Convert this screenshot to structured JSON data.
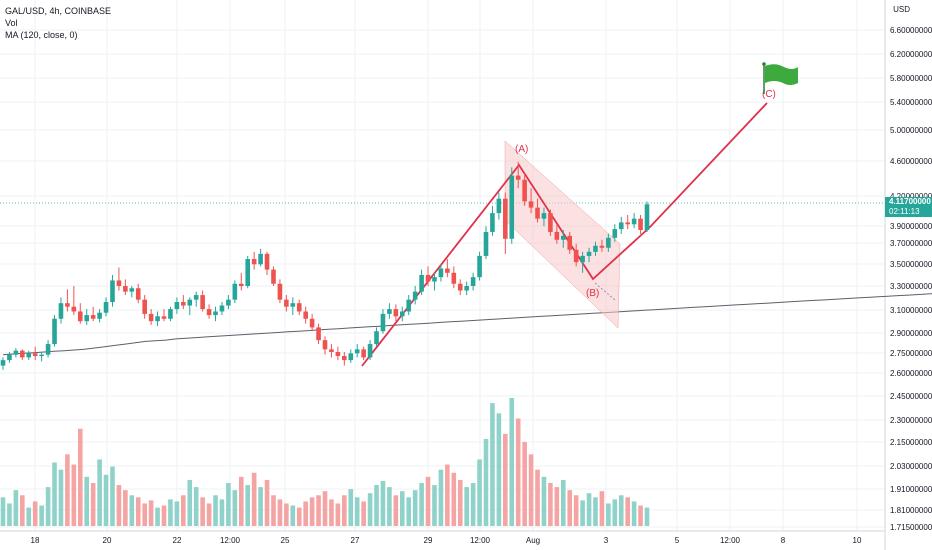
{
  "legend": {
    "symbol": "GAL/USD, 4h, COINBASE",
    "vol": "Vol",
    "ma": "MA (120, close, 0)"
  },
  "currency": "USD",
  "last_price": "4.11700000",
  "countdown": "02:11:13",
  "colors": {
    "up": "#26a69a",
    "down": "#ef5350",
    "up_vol": "#8fd2c9",
    "down_vol": "#f4a5a3",
    "ma": "#5d606b",
    "drawing": "#e0304a",
    "channel_fill": "#f8c8c8",
    "flag": "#3caa3c"
  },
  "chart_data": {
    "type": "candlestick",
    "symbol": "GAL/USD",
    "timeframe": "4h",
    "exchange": "COINBASE",
    "x_tick_labels": [
      "18",
      "20",
      "22",
      "12:00",
      "25",
      "27",
      "29",
      "12:00",
      "Aug",
      "3",
      "5",
      "12:00",
      "8",
      "10"
    ],
    "y_tick_labels": [
      "6.60000000",
      "6.20000000",
      "5.80000000",
      "5.40000000",
      "5.00000000",
      "4.60000000",
      "4.20000000",
      "3.90000000",
      "3.70000000",
      "3.50000000",
      "3.30000000",
      "3.10000000",
      "2.90000000",
      "2.75000000",
      "2.60000000",
      "2.45000000",
      "2.30000000",
      "2.15000000",
      "2.03000000",
      "1.91000000",
      "1.81000000",
      "1.71500000"
    ],
    "y_scale": "log",
    "ylim": [
      1.7,
      6.8
    ],
    "candles": [
      [
        2.66,
        2.72,
        2.63,
        2.7
      ],
      [
        2.7,
        2.76,
        2.68,
        2.74
      ],
      [
        2.74,
        2.79,
        2.72,
        2.77
      ],
      [
        2.77,
        2.78,
        2.7,
        2.72
      ],
      [
        2.72,
        2.77,
        2.7,
        2.75
      ],
      [
        2.75,
        2.8,
        2.7,
        2.73
      ],
      [
        2.73,
        2.76,
        2.69,
        2.74
      ],
      [
        2.74,
        2.85,
        2.72,
        2.82
      ],
      [
        2.82,
        3.05,
        2.8,
        3.02
      ],
      [
        3.02,
        3.2,
        2.98,
        3.15
      ],
      [
        3.15,
        3.27,
        3.08,
        3.12
      ],
      [
        3.12,
        3.3,
        3.05,
        3.08
      ],
      [
        3.08,
        3.15,
        2.98,
        3.0
      ],
      [
        3.0,
        3.1,
        2.97,
        3.05
      ],
      [
        3.05,
        3.12,
        3.0,
        3.02
      ],
      [
        3.02,
        3.1,
        2.99,
        3.07
      ],
      [
        3.07,
        3.2,
        3.04,
        3.16
      ],
      [
        3.16,
        3.4,
        3.12,
        3.35
      ],
      [
        3.35,
        3.47,
        3.26,
        3.3
      ],
      [
        3.3,
        3.36,
        3.22,
        3.25
      ],
      [
        3.25,
        3.3,
        3.2,
        3.28
      ],
      [
        3.28,
        3.32,
        3.15,
        3.18
      ],
      [
        3.18,
        3.22,
        3.02,
        3.06
      ],
      [
        3.06,
        3.1,
        2.97,
        3.0
      ],
      [
        3.0,
        3.08,
        2.96,
        3.04
      ],
      [
        3.04,
        3.1,
        3.0,
        3.02
      ],
      [
        3.02,
        3.12,
        3.0,
        3.1
      ],
      [
        3.1,
        3.2,
        3.06,
        3.16
      ],
      [
        3.16,
        3.22,
        3.1,
        3.13
      ],
      [
        3.13,
        3.2,
        3.05,
        3.18
      ],
      [
        3.18,
        3.25,
        3.12,
        3.22
      ],
      [
        3.22,
        3.26,
        3.08,
        3.1
      ],
      [
        3.1,
        3.14,
        3.02,
        3.05
      ],
      [
        3.05,
        3.12,
        3.0,
        3.08
      ],
      [
        3.08,
        3.16,
        3.05,
        3.13
      ],
      [
        3.13,
        3.22,
        3.1,
        3.18
      ],
      [
        3.18,
        3.35,
        3.15,
        3.32
      ],
      [
        3.32,
        3.42,
        3.26,
        3.3
      ],
      [
        3.3,
        3.58,
        3.28,
        3.55
      ],
      [
        3.55,
        3.62,
        3.45,
        3.5
      ],
      [
        3.5,
        3.65,
        3.48,
        3.6
      ],
      [
        3.6,
        3.62,
        3.4,
        3.45
      ],
      [
        3.45,
        3.48,
        3.3,
        3.32
      ],
      [
        3.32,
        3.36,
        3.15,
        3.18
      ],
      [
        3.18,
        3.22,
        3.08,
        3.12
      ],
      [
        3.12,
        3.2,
        3.05,
        3.15
      ],
      [
        3.15,
        3.18,
        3.05,
        3.08
      ],
      [
        3.08,
        3.12,
        2.98,
        3.02
      ],
      [
        3.02,
        3.06,
        2.92,
        2.95
      ],
      [
        2.95,
        2.98,
        2.82,
        2.85
      ],
      [
        2.85,
        2.88,
        2.74,
        2.78
      ],
      [
        2.78,
        2.82,
        2.72,
        2.76
      ],
      [
        2.76,
        2.8,
        2.7,
        2.73
      ],
      [
        2.73,
        2.76,
        2.66,
        2.7
      ],
      [
        2.7,
        2.78,
        2.68,
        2.75
      ],
      [
        2.75,
        2.82,
        2.72,
        2.78
      ],
      [
        2.78,
        2.8,
        2.7,
        2.72
      ],
      [
        2.72,
        2.85,
        2.7,
        2.82
      ],
      [
        2.82,
        2.95,
        2.8,
        2.92
      ],
      [
        2.92,
        3.1,
        2.9,
        3.06
      ],
      [
        3.06,
        3.15,
        3.02,
        3.1
      ],
      [
        3.1,
        3.14,
        3.0,
        3.04
      ],
      [
        3.04,
        3.12,
        3.0,
        3.08
      ],
      [
        3.08,
        3.22,
        3.05,
        3.18
      ],
      [
        3.18,
        3.3,
        3.14,
        3.25
      ],
      [
        3.25,
        3.45,
        3.22,
        3.4
      ],
      [
        3.4,
        3.48,
        3.3,
        3.34
      ],
      [
        3.34,
        3.42,
        3.26,
        3.38
      ],
      [
        3.38,
        3.5,
        3.34,
        3.46
      ],
      [
        3.46,
        3.55,
        3.38,
        3.42
      ],
      [
        3.42,
        3.48,
        3.28,
        3.32
      ],
      [
        3.32,
        3.36,
        3.22,
        3.26
      ],
      [
        3.26,
        3.34,
        3.22,
        3.3
      ],
      [
        3.3,
        3.42,
        3.26,
        3.38
      ],
      [
        3.38,
        3.62,
        3.35,
        3.58
      ],
      [
        3.58,
        3.88,
        3.55,
        3.82
      ],
      [
        3.82,
        4.1,
        3.78,
        4.02
      ],
      [
        4.02,
        4.25,
        3.95,
        4.18
      ],
      [
        4.18,
        4.25,
        3.6,
        3.75
      ],
      [
        3.75,
        4.55,
        3.7,
        4.45
      ],
      [
        4.45,
        4.62,
        4.3,
        4.4
      ],
      [
        4.4,
        4.48,
        4.1,
        4.15
      ],
      [
        4.15,
        4.3,
        4.02,
        4.08
      ],
      [
        4.08,
        4.18,
        3.92,
        3.96
      ],
      [
        3.96,
        4.08,
        3.88,
        4.02
      ],
      [
        4.02,
        4.06,
        3.78,
        3.82
      ],
      [
        3.82,
        3.9,
        3.7,
        3.74
      ],
      [
        3.74,
        3.84,
        3.66,
        3.78
      ],
      [
        3.78,
        3.82,
        3.6,
        3.64
      ],
      [
        3.64,
        3.7,
        3.48,
        3.52
      ],
      [
        3.52,
        3.62,
        3.42,
        3.58
      ],
      [
        3.58,
        3.66,
        3.52,
        3.62
      ],
      [
        3.62,
        3.72,
        3.58,
        3.68
      ],
      [
        3.68,
        3.74,
        3.62,
        3.66
      ],
      [
        3.66,
        3.8,
        3.62,
        3.76
      ],
      [
        3.76,
        3.9,
        3.72,
        3.85
      ],
      [
        3.85,
        3.98,
        3.8,
        3.92
      ],
      [
        3.92,
        4.0,
        3.85,
        3.9
      ],
      [
        3.9,
        4.02,
        3.86,
        3.96
      ],
      [
        3.96,
        4.0,
        3.8,
        3.84
      ],
      [
        3.84,
        4.15,
        3.82,
        4.117
      ]
    ],
    "volume_series": {
      "name": "Vol",
      "values": [
        28,
        22,
        35,
        30,
        18,
        24,
        20,
        38,
        62,
        55,
        70,
        60,
        95,
        48,
        42,
        65,
        50,
        58,
        40,
        35,
        30,
        28,
        22,
        25,
        18,
        20,
        26,
        24,
        30,
        45,
        38,
        28,
        22,
        30,
        26,
        42,
        35,
        48,
        40,
        52,
        38,
        45,
        30,
        26,
        22,
        20,
        18,
        24,
        28,
        30,
        34,
        26,
        22,
        30,
        36,
        28,
        24,
        32,
        40,
        44,
        38,
        30,
        34,
        28,
        35,
        42,
        48,
        40,
        55,
        60,
        52,
        45,
        38,
        42,
        65,
        85,
        120,
        110,
        90,
        125,
        105,
        82,
        70,
        55,
        48,
        42,
        38,
        45,
        35,
        30,
        25,
        32,
        28,
        34,
        22,
        26,
        30,
        28,
        24,
        20,
        18
      ]
    },
    "ma_series": {
      "name": "MA (120, close, 0)",
      "values": [
        2.74,
        2.745,
        2.75,
        2.755,
        2.76,
        2.765,
        2.77,
        2.775,
        2.78,
        2.79,
        2.8,
        2.81,
        2.82,
        2.83,
        2.84,
        2.845,
        2.85,
        2.86,
        2.865,
        2.87,
        2.875,
        2.88,
        2.885,
        2.89,
        2.895,
        2.9,
        2.905,
        2.91,
        2.915,
        2.92,
        2.925,
        2.93,
        2.935,
        2.94,
        2.945,
        2.95,
        2.955,
        2.96,
        2.965,
        2.97,
        2.975,
        2.98,
        2.985,
        2.99,
        2.995,
        3.0,
        3.005,
        3.01,
        3.015,
        3.02,
        3.025,
        3.03,
        3.035,
        3.04,
        3.045,
        3.05,
        3.055,
        3.06,
        3.065,
        3.07,
        3.075,
        3.08,
        3.085,
        3.09,
        3.095,
        3.1,
        3.105,
        3.11,
        3.115,
        3.12,
        3.125,
        3.13,
        3.135,
        3.14,
        3.145,
        3.15,
        3.155,
        3.16,
        3.165,
        3.17,
        3.175,
        3.18,
        3.185,
        3.19,
        3.195,
        3.2,
        3.205,
        3.21,
        3.215,
        3.22,
        3.225,
        3.23,
        3.235,
        3.24,
        3.245,
        3.25,
        3.255,
        3.26,
        3.265,
        3.27,
        3.275
      ]
    },
    "annotations": [
      {
        "label": "(A)",
        "value": 4.6
      },
      {
        "label": "(B)",
        "value": 3.3
      },
      {
        "label": "(C)",
        "value": 5.4
      }
    ]
  }
}
